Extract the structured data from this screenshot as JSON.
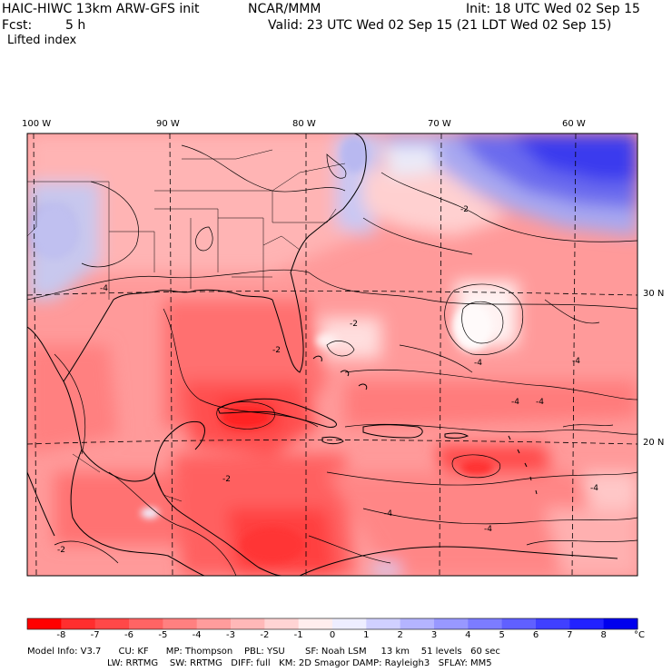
{
  "header": {
    "model": "HAIC-HIWC 13km ARW-GFS init",
    "org": "NCAR/MMM",
    "init": "Init: 18 UTC Wed 02 Sep 15",
    "fcst_label": "Fcst:",
    "fcst_value": "5 h",
    "valid": "Valid: 23 UTC Wed 02 Sep 15 (21 LDT Wed 02 Sep 15)",
    "field": "Lifted index"
  },
  "axes": {
    "lon_labels": [
      "100 W",
      "90 W",
      "80 W",
      "70 W",
      "60 W"
    ],
    "lat_labels": [
      "30 N",
      "20 N"
    ]
  },
  "contour_labels": [
    "-2",
    "-4",
    "-4",
    "-4",
    "-2",
    "-4",
    "-4",
    "-2",
    "-2",
    "-4",
    "-4",
    "-4",
    "-2"
  ],
  "colorbar": {
    "unit": "°C",
    "ticks": [
      "-8",
      "-7",
      "-6",
      "-5",
      "-4",
      "-3",
      "-2",
      "-1",
      "0",
      "1",
      "2",
      "3",
      "4",
      "5",
      "6",
      "7",
      "8"
    ],
    "colors": [
      "#ff0000",
      "#ff2e2e",
      "#ff4848",
      "#ff6464",
      "#ff8080",
      "#ff9c9c",
      "#ffb8b8",
      "#ffd4d4",
      "#ffeeee",
      "#eeeeff",
      "#d0d0ff",
      "#b4b4ff",
      "#9898ff",
      "#7c7cff",
      "#6060ff",
      "#4040ff",
      "#2222ff",
      "#0000ee"
    ]
  },
  "footer": {
    "line1": "Model Info: V3.7      CU: KF      MP: Thompson    PBL: YSU       SF: Noah LSM     13 km    51 levels   60 sec",
    "line2": "LW: RRTMG    SW: RRTMG   DIFF: full   KM: 2D Smagor DAMP: Rayleigh3   SFLAY: MM5"
  }
}
